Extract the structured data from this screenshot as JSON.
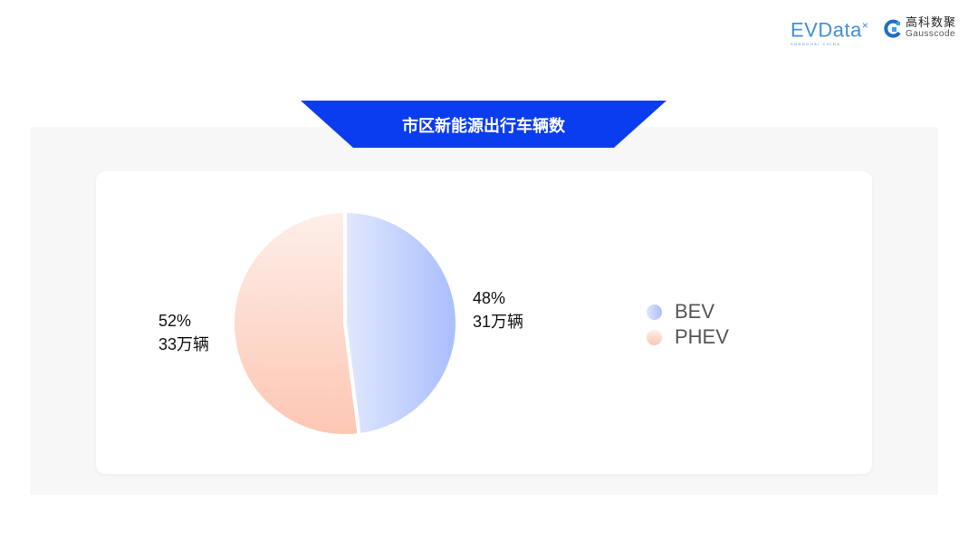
{
  "logos": {
    "evdata": "EVData",
    "evdata_sub": "SHANGHAI CHINA",
    "gauss_cn": "高科数聚",
    "gauss_en": "Gausscode"
  },
  "title": "市区新能源出行车辆数",
  "colors": {
    "banner": "#0a3cf0",
    "bev_light": "#e1e8fd",
    "bev_dark": "#a9bdfd",
    "phev_light": "#fdefe9",
    "phev_dark": "#fdc6b3"
  },
  "chart_data": {
    "type": "pie",
    "title": "市区新能源出行车辆数",
    "legend_position": "right",
    "slices": [
      {
        "name": "BEV",
        "value": 48,
        "percent_label": "48%",
        "count_label": "31万辆"
      },
      {
        "name": "PHEV",
        "value": 52,
        "percent_label": "52%",
        "count_label": "33万辆"
      }
    ]
  }
}
